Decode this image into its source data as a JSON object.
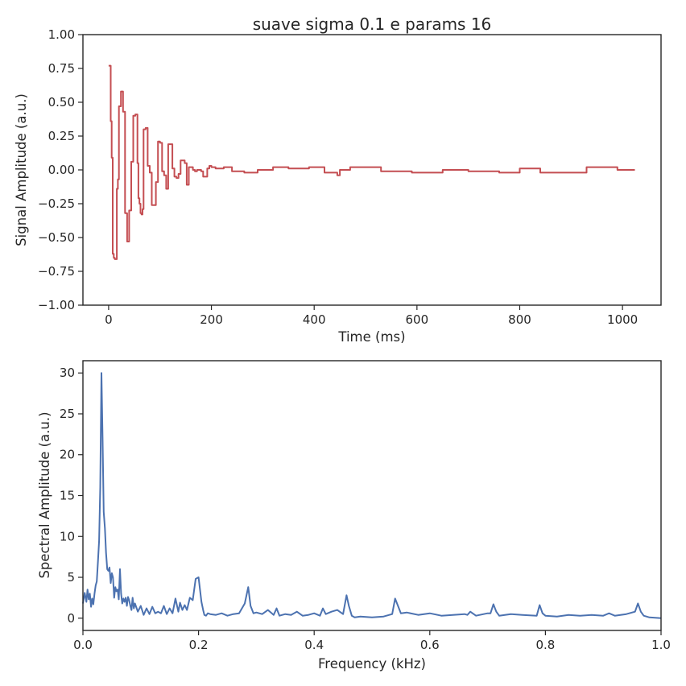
{
  "chart_data": [
    {
      "type": "line",
      "title": "suave sigma 0.1 e params 16",
      "xlabel": "Time (ms)",
      "ylabel": "Signal Amplitude (a.u.)",
      "xlim": [
        -50,
        1075
      ],
      "ylim": [
        -1.0,
        1.0
      ],
      "xticks": [
        "0",
        "200",
        "400",
        "600",
        "800",
        "1000"
      ],
      "yticks": [
        "1.00",
        "0.75",
        "0.50",
        "0.25",
        "0.00",
        "−0.25",
        "−0.50",
        "−0.75",
        "−1.00"
      ],
      "grid": false,
      "color": "#c44e52",
      "step": true,
      "x": [
        0,
        4,
        6,
        8,
        10,
        12,
        14,
        16,
        18,
        20,
        24,
        28,
        32,
        36,
        40,
        44,
        48,
        52,
        56,
        58,
        60,
        62,
        64,
        66,
        68,
        72,
        76,
        80,
        84,
        88,
        92,
        96,
        100,
        104,
        108,
        112,
        116,
        120,
        124,
        128,
        132,
        136,
        140,
        144,
        148,
        152,
        156,
        160,
        164,
        168,
        172,
        176,
        180,
        184,
        188,
        192,
        196,
        200,
        204,
        208,
        212,
        218,
        224,
        232,
        240,
        256,
        264,
        280,
        290,
        310,
        320,
        340,
        350,
        380,
        390,
        410,
        420,
        440,
        445,
        450,
        470,
        500,
        530,
        560,
        590,
        620,
        650,
        680,
        700,
        730,
        760,
        780,
        800,
        820,
        840,
        870,
        900,
        930,
        960,
        990,
        1024
      ],
      "y": [
        0.77,
        0.36,
        0.09,
        -0.62,
        -0.65,
        -0.66,
        -0.66,
        -0.14,
        -0.07,
        0.47,
        0.58,
        0.43,
        -0.32,
        -0.53,
        -0.3,
        0.06,
        0.4,
        0.41,
        0.05,
        -0.21,
        -0.25,
        -0.32,
        -0.33,
        -0.29,
        0.3,
        0.31,
        0.03,
        -0.02,
        -0.26,
        -0.26,
        -0.09,
        0.21,
        0.2,
        -0.01,
        -0.04,
        -0.14,
        0.19,
        0.19,
        0.01,
        -0.05,
        -0.06,
        -0.03,
        0.07,
        0.07,
        0.05,
        -0.11,
        0.02,
        0.02,
        0.0,
        -0.01,
        0.0,
        0.0,
        -0.01,
        -0.05,
        -0.05,
        0.01,
        0.03,
        0.02,
        0.02,
        0.01,
        0.01,
        0.01,
        0.02,
        0.02,
        -0.01,
        -0.01,
        -0.02,
        -0.02,
        0.0,
        0.0,
        0.02,
        0.02,
        0.01,
        0.01,
        0.02,
        0.02,
        -0.02,
        -0.02,
        -0.04,
        0.0,
        0.02,
        0.02,
        -0.01,
        -0.01,
        -0.02,
        -0.02,
        0.0,
        0.0,
        -0.01,
        -0.01,
        -0.02,
        -0.02,
        0.01,
        0.01,
        -0.02,
        -0.02,
        -0.02,
        0.02,
        0.02,
        0.0,
        0.0
      ]
    },
    {
      "type": "line",
      "title": "",
      "xlabel": "Frequency (kHz)",
      "ylabel": "Spectral Amplitude (a.u.)",
      "xlim": [
        0.0,
        1.0
      ],
      "ylim": [
        -1.5,
        31.5
      ],
      "xticks": [
        "0.0",
        "0.2",
        "0.4",
        "0.6",
        "0.8",
        "1.0"
      ],
      "yticks": [
        "30",
        "25",
        "20",
        "15",
        "10",
        "5",
        "0"
      ],
      "grid": false,
      "color": "#4c72b0",
      "x": [
        0.0,
        0.003,
        0.006,
        0.008,
        0.01,
        0.012,
        0.014,
        0.016,
        0.018,
        0.02,
        0.022,
        0.024,
        0.026,
        0.028,
        0.03,
        0.032,
        0.034,
        0.036,
        0.038,
        0.04,
        0.042,
        0.044,
        0.046,
        0.048,
        0.05,
        0.052,
        0.054,
        0.056,
        0.058,
        0.06,
        0.062,
        0.064,
        0.066,
        0.068,
        0.07,
        0.072,
        0.074,
        0.076,
        0.078,
        0.08,
        0.082,
        0.084,
        0.086,
        0.088,
        0.09,
        0.095,
        0.1,
        0.105,
        0.11,
        0.115,
        0.12,
        0.125,
        0.13,
        0.135,
        0.14,
        0.145,
        0.15,
        0.155,
        0.16,
        0.165,
        0.168,
        0.172,
        0.176,
        0.18,
        0.185,
        0.19,
        0.195,
        0.2,
        0.205,
        0.208,
        0.21,
        0.213,
        0.216,
        0.22,
        0.23,
        0.24,
        0.25,
        0.26,
        0.27,
        0.28,
        0.286,
        0.29,
        0.295,
        0.3,
        0.31,
        0.32,
        0.33,
        0.335,
        0.34,
        0.35,
        0.36,
        0.37,
        0.38,
        0.39,
        0.4,
        0.41,
        0.415,
        0.42,
        0.43,
        0.44,
        0.45,
        0.456,
        0.46,
        0.465,
        0.47,
        0.48,
        0.5,
        0.52,
        0.535,
        0.54,
        0.545,
        0.55,
        0.56,
        0.58,
        0.6,
        0.62,
        0.64,
        0.66,
        0.665,
        0.67,
        0.68,
        0.7,
        0.705,
        0.71,
        0.715,
        0.72,
        0.74,
        0.76,
        0.785,
        0.79,
        0.795,
        0.8,
        0.82,
        0.84,
        0.86,
        0.88,
        0.9,
        0.91,
        0.92,
        0.94,
        0.955,
        0.96,
        0.965,
        0.97,
        0.98,
        1.0
      ],
      "y": [
        1.8,
        3.1,
        2.0,
        3.5,
        2.3,
        3.0,
        1.4,
        2.4,
        1.7,
        3.0,
        4.0,
        4.5,
        7.0,
        9.5,
        16.0,
        30.0,
        22.0,
        13.0,
        11.0,
        8.0,
        6.0,
        5.8,
        6.2,
        4.3,
        5.5,
        5.0,
        2.5,
        3.8,
        3.3,
        3.5,
        2.3,
        6.0,
        3.0,
        1.8,
        2.4,
        2.0,
        2.5,
        1.5,
        2.6,
        2.2,
        1.5,
        1.0,
        2.5,
        1.2,
        1.8,
        0.8,
        1.5,
        0.4,
        1.2,
        0.5,
        1.4,
        0.6,
        0.8,
        0.6,
        1.5,
        0.5,
        1.2,
        0.6,
        2.4,
        0.8,
        1.9,
        1.0,
        1.6,
        1.0,
        2.5,
        2.2,
        4.8,
        5.0,
        2.0,
        1.0,
        0.4,
        0.3,
        0.6,
        0.5,
        0.4,
        0.6,
        0.3,
        0.5,
        0.6,
        1.8,
        3.8,
        1.5,
        0.6,
        0.7,
        0.5,
        1.0,
        0.4,
        1.2,
        0.3,
        0.5,
        0.4,
        0.8,
        0.3,
        0.4,
        0.6,
        0.3,
        1.2,
        0.5,
        0.8,
        1.0,
        0.5,
        2.8,
        1.5,
        0.3,
        0.1,
        0.2,
        0.1,
        0.2,
        0.5,
        2.4,
        1.5,
        0.6,
        0.7,
        0.4,
        0.6,
        0.3,
        0.4,
        0.5,
        0.4,
        0.8,
        0.3,
        0.6,
        0.6,
        1.7,
        0.8,
        0.3,
        0.5,
        0.4,
        0.3,
        1.6,
        0.6,
        0.3,
        0.2,
        0.4,
        0.3,
        0.4,
        0.3,
        0.6,
        0.3,
        0.5,
        0.8,
        1.8,
        0.8,
        0.3,
        0.1,
        0.0
      ]
    }
  ]
}
